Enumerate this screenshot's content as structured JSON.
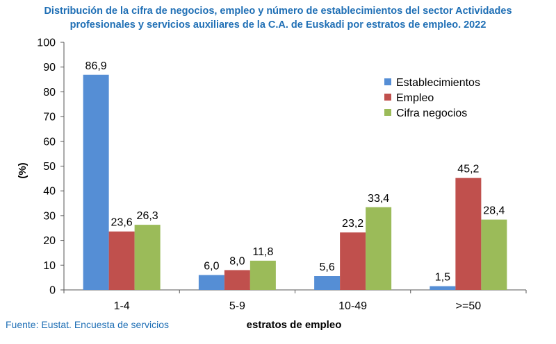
{
  "title_lines": [
    "Distribución de la cifra de negocios, empleo y número de establecimientos del sector Actividades",
    "profesionales y servicios auxiliares de la C.A. de Euskadi por estratos de empleo. 2022"
  ],
  "source": "Fuente: Eustat. Encuesta de servicios",
  "chart_data": {
    "type": "bar",
    "title": "Distribución de la cifra de negocios, empleo y número de establecimientos del sector Actividades profesionales y servicios auxiliares de la C.A. de Euskadi por estratos de empleo. 2022",
    "xlabel": "estratos de empleo",
    "ylabel": "(%)",
    "ylim": [
      0,
      100
    ],
    "yticks": [
      0,
      10,
      20,
      30,
      40,
      50,
      60,
      70,
      80,
      90,
      100
    ],
    "grid": false,
    "legend_position": "top-right",
    "categories": [
      "1-4",
      "5-9",
      "10-49",
      ">=50"
    ],
    "series": [
      {
        "name": "Establecimientos",
        "color": "#558ed5",
        "values": [
          86.9,
          6.0,
          5.6,
          1.5
        ],
        "labels": [
          "86,9",
          "6,0",
          "5,6",
          "1,5"
        ]
      },
      {
        "name": "Empleo",
        "color": "#c0504d",
        "values": [
          23.6,
          8.0,
          23.2,
          45.2
        ],
        "labels": [
          "23,6",
          "8,0",
          "23,2",
          "45,2"
        ]
      },
      {
        "name": "Cifra negocios",
        "color": "#9bbb59",
        "values": [
          26.3,
          11.8,
          33.4,
          28.4
        ],
        "labels": [
          "26,3",
          "11,8",
          "33,4",
          "28,4"
        ]
      }
    ]
  }
}
